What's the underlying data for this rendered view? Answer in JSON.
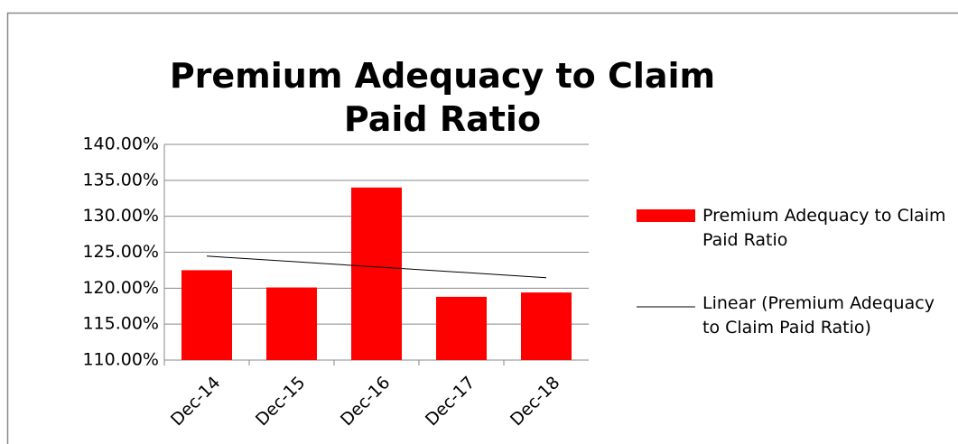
{
  "chart_data": {
    "type": "bar",
    "title": "Premium Adequacy to Claim Paid Ratio",
    "categories": [
      "Dec-14",
      "Dec-15",
      "Dec-16",
      "Dec-17",
      "Dec-18"
    ],
    "series": [
      {
        "name": "Premium Adequacy to Claim Paid Ratio",
        "color": "#ff0000",
        "values": [
          122.5,
          120.1,
          134,
          118.8,
          119.4
        ]
      }
    ],
    "trendline": {
      "name": "Linear (Premium Adequacy to Claim Paid Ratio)",
      "color": "#000000",
      "kind": "linear"
    },
    "ylim": [
      110,
      140
    ],
    "yticks": [
      {
        "value": 110,
        "label": "110.00%"
      },
      {
        "value": 115,
        "label": "115.00%"
      },
      {
        "value": 120,
        "label": "120.00%"
      },
      {
        "value": 125,
        "label": "125.00%"
      },
      {
        "value": 130,
        "label": "130.00%"
      },
      {
        "value": 135,
        "label": "135.00%"
      },
      {
        "value": 140,
        "label": "140.00%"
      }
    ],
    "grid": true,
    "legend": "right"
  }
}
